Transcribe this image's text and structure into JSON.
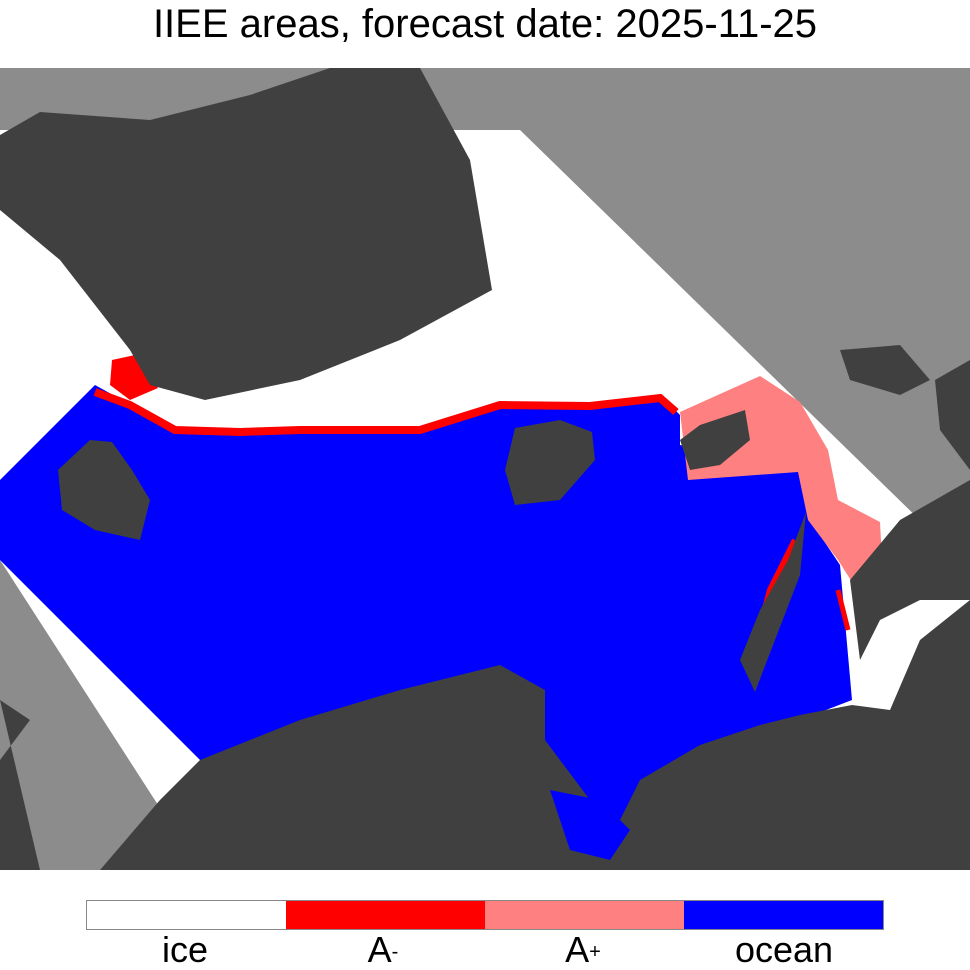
{
  "title": "IIEE areas, forecast date: 2025-11-25",
  "colors": {
    "ice": "#ffffff",
    "a_minus": "#ff0000",
    "a_plus": "#ff8080",
    "ocean": "#0000ff",
    "land": "#404040",
    "outside": "#8c8c8c"
  },
  "legend": [
    {
      "label": "ice",
      "sup": ""
    },
    {
      "label": "A",
      "sup": "-"
    },
    {
      "label": "A",
      "sup": "+"
    },
    {
      "label": "ocean",
      "sup": ""
    }
  ]
}
